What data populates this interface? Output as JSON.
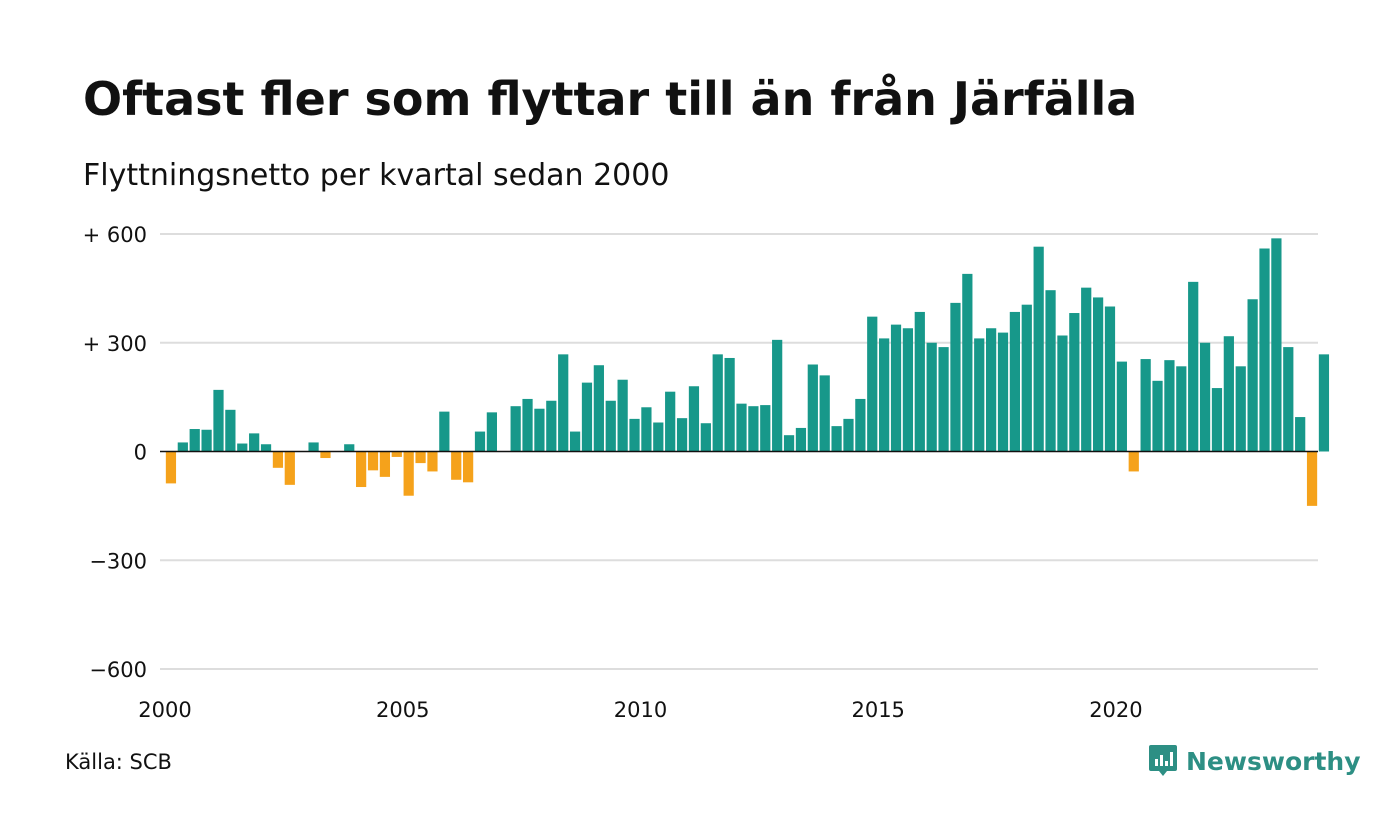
{
  "chart_data": {
    "type": "bar",
    "title": "Oftast fler som flyttar till än från Järfälla",
    "subtitle": "Flyttningsnetto per kvartal sedan 2000",
    "xlabel": "",
    "ylabel": "",
    "ylim": [
      -600,
      600
    ],
    "y_ticks": [
      600,
      300,
      0,
      -300,
      -600
    ],
    "y_tick_labels": [
      "+ 600",
      "+ 300",
      "0",
      "−300",
      "−600"
    ],
    "x_ticks": [
      2000,
      2005,
      2010,
      2015,
      2020
    ],
    "x_tick_labels": [
      "2000",
      "2005",
      "2010",
      "2015",
      "2020"
    ],
    "x_start": 2000,
    "x_end": 2024.25,
    "period": "quarter",
    "grid": true,
    "colors": {
      "positive": "#17988a",
      "negative": "#f5a21b",
      "grid": "#dddddd",
      "axis": "#111111"
    },
    "values": [
      -88,
      25,
      62,
      60,
      170,
      115,
      22,
      50,
      20,
      -45,
      -92,
      0,
      25,
      -18,
      0,
      20,
      -98,
      -52,
      -70,
      -15,
      -122,
      -32,
      -55,
      110,
      -78,
      -85,
      55,
      108,
      0,
      125,
      145,
      118,
      140,
      268,
      55,
      190,
      238,
      140,
      198,
      90,
      122,
      80,
      165,
      92,
      180,
      78,
      268,
      258,
      132,
      125,
      128,
      308,
      45,
      65,
      240,
      210,
      70,
      90,
      145,
      372,
      312,
      350,
      340,
      385,
      300,
      288,
      410,
      490,
      312,
      340,
      328,
      385,
      405,
      565,
      445,
      320,
      382,
      452,
      425,
      400,
      248,
      -55,
      255,
      195,
      252,
      235,
      468,
      300,
      175,
      318,
      235,
      420,
      560,
      588,
      288,
      95,
      -150,
      268
    ]
  },
  "footer": {
    "source": "Källa: SCB",
    "brand": "Newsworthy",
    "brand_icon": "newsworthy-logo-icon"
  }
}
